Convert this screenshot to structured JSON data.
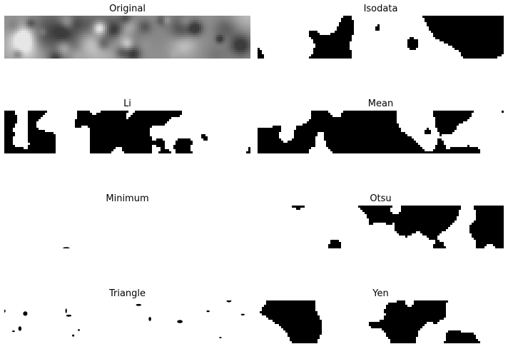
{
  "figure": {
    "panels": [
      {
        "title": "Original",
        "kind": "grayscale"
      },
      {
        "title": "Isodata",
        "kind": "binary",
        "density": 0.52,
        "seed": 11
      },
      {
        "title": "Li",
        "kind": "binary",
        "density": 0.5,
        "seed": 23
      },
      {
        "title": "Mean",
        "kind": "binary",
        "density": 0.53,
        "seed": 37
      },
      {
        "title": "Minimum",
        "kind": "sparse",
        "density": 0.004,
        "seed": 41
      },
      {
        "title": "Otsu",
        "kind": "binary",
        "density": 0.51,
        "seed": 53
      },
      {
        "title": "Triangle",
        "kind": "sparse",
        "density": 0.05,
        "seed": 67
      },
      {
        "title": "Yen",
        "kind": "binary",
        "density": 0.38,
        "seed": 79
      }
    ]
  },
  "colors": {
    "black": "#000000",
    "white": "#ffffff",
    "gray_dark": "#3a3a3a",
    "gray_light": "#d8d8d8"
  }
}
